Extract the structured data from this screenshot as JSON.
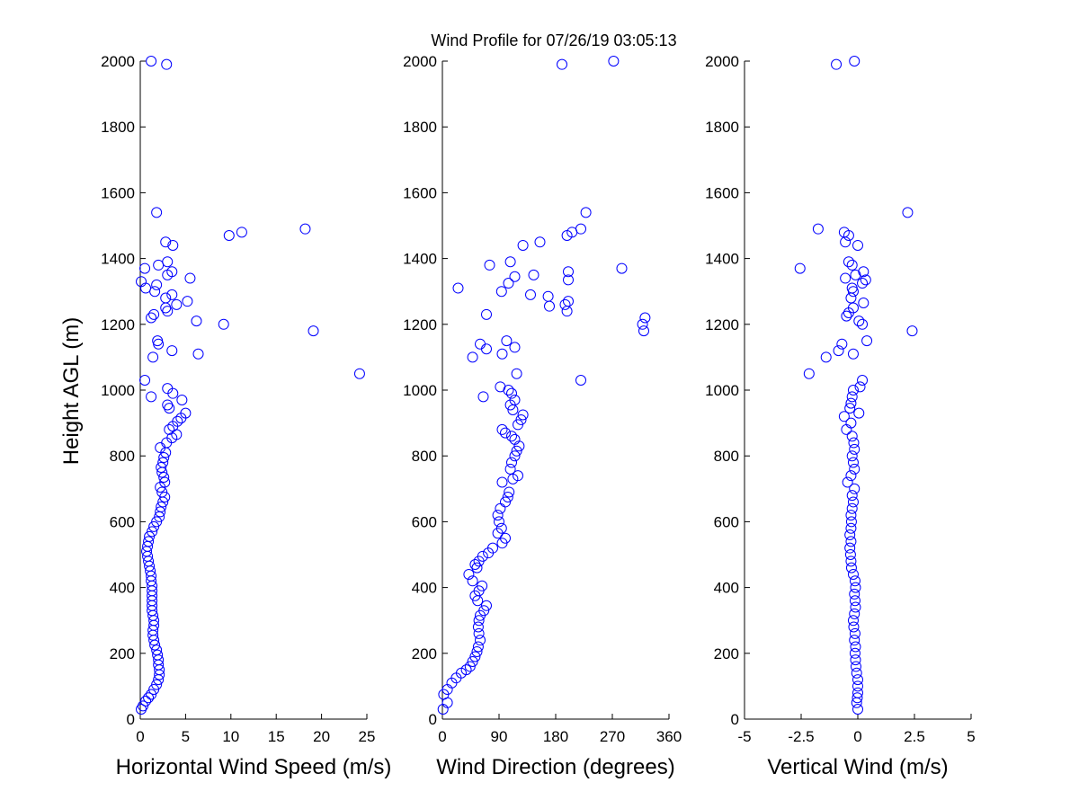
{
  "chart_data": {
    "title": "Wind Profile for  07/26/19 03:05:13",
    "ylabel": "Height AGL (m)",
    "panels": [
      {
        "type": "scatter",
        "xlabel": "Horizontal Wind Speed (m/s)",
        "xlim": [
          0,
          25
        ],
        "xticks": [
          "0",
          "5",
          "10",
          "15",
          "20",
          "25"
        ],
        "xtick_values": [
          0,
          5,
          10,
          15,
          20,
          25
        ],
        "ylim": [
          0,
          2000
        ],
        "yticks": [
          "0",
          "200",
          "400",
          "600",
          "800",
          "1000",
          "1200",
          "1400",
          "1600",
          "1800",
          "2000"
        ],
        "color": "#0000ff",
        "points": [
          [
            0.1,
            30
          ],
          [
            0.3,
            40
          ],
          [
            0.6,
            55
          ],
          [
            0.9,
            65
          ],
          [
            1.2,
            75
          ],
          [
            1.5,
            90
          ],
          [
            1.8,
            105
          ],
          [
            2.0,
            120
          ],
          [
            2.1,
            135
          ],
          [
            2.1,
            150
          ],
          [
            2.0,
            165
          ],
          [
            2.0,
            180
          ],
          [
            1.9,
            195
          ],
          [
            1.8,
            210
          ],
          [
            1.6,
            225
          ],
          [
            1.5,
            240
          ],
          [
            1.4,
            255
          ],
          [
            1.4,
            270
          ],
          [
            1.5,
            285
          ],
          [
            1.5,
            300
          ],
          [
            1.4,
            315
          ],
          [
            1.3,
            330
          ],
          [
            1.3,
            345
          ],
          [
            1.3,
            360
          ],
          [
            1.3,
            375
          ],
          [
            1.3,
            390
          ],
          [
            1.3,
            405
          ],
          [
            1.2,
            420
          ],
          [
            1.2,
            435
          ],
          [
            1.1,
            450
          ],
          [
            1.0,
            465
          ],
          [
            0.9,
            480
          ],
          [
            0.8,
            495
          ],
          [
            0.7,
            510
          ],
          [
            0.8,
            525
          ],
          [
            0.9,
            540
          ],
          [
            1.0,
            555
          ],
          [
            1.3,
            570
          ],
          [
            1.5,
            585
          ],
          [
            1.8,
            600
          ],
          [
            2.1,
            615
          ],
          [
            2.2,
            630
          ],
          [
            2.3,
            645
          ],
          [
            2.5,
            660
          ],
          [
            2.7,
            675
          ],
          [
            2.4,
            690
          ],
          [
            2.2,
            705
          ],
          [
            2.7,
            720
          ],
          [
            2.6,
            735
          ],
          [
            2.4,
            750
          ],
          [
            2.3,
            765
          ],
          [
            2.5,
            780
          ],
          [
            2.6,
            795
          ],
          [
            2.8,
            810
          ],
          [
            2.2,
            825
          ],
          [
            2.9,
            840
          ],
          [
            3.5,
            855
          ],
          [
            4.0,
            865
          ],
          [
            3.2,
            880
          ],
          [
            3.6,
            890
          ],
          [
            4.1,
            905
          ],
          [
            4.5,
            915
          ],
          [
            5.0,
            930
          ],
          [
            3.2,
            945
          ],
          [
            3.0,
            955
          ],
          [
            4.6,
            970
          ],
          [
            3.6,
            990
          ],
          [
            3.0,
            1005
          ],
          [
            1.2,
            980
          ],
          [
            0.5,
            1030
          ],
          [
            24.2,
            1050
          ],
          [
            1.4,
            1100
          ],
          [
            3.5,
            1120
          ],
          [
            2.0,
            1140
          ],
          [
            1.9,
            1150
          ],
          [
            6.4,
            1110
          ],
          [
            19.1,
            1180
          ],
          [
            9.2,
            1200
          ],
          [
            6.2,
            1210
          ],
          [
            1.2,
            1220
          ],
          [
            1.5,
            1230
          ],
          [
            3.0,
            1240
          ],
          [
            2.8,
            1250
          ],
          [
            4.0,
            1260
          ],
          [
            5.2,
            1270
          ],
          [
            2.8,
            1280
          ],
          [
            3.5,
            1290
          ],
          [
            1.6,
            1300
          ],
          [
            0.6,
            1310
          ],
          [
            1.8,
            1320
          ],
          [
            0.1,
            1330
          ],
          [
            5.5,
            1340
          ],
          [
            3.0,
            1350
          ],
          [
            3.5,
            1360
          ],
          [
            0.5,
            1370
          ],
          [
            2.0,
            1380
          ],
          [
            3.0,
            1390
          ],
          [
            3.6,
            1440
          ],
          [
            2.8,
            1450
          ],
          [
            9.8,
            1470
          ],
          [
            11.2,
            1480
          ],
          [
            18.2,
            1490
          ],
          [
            1.8,
            1540
          ],
          [
            2.9,
            1990
          ],
          [
            1.2,
            2000
          ]
        ]
      },
      {
        "type": "scatter",
        "xlabel": "Wind Direction (degrees)",
        "xlim": [
          0,
          360
        ],
        "xticks": [
          "0",
          "90",
          "180",
          "270",
          "360"
        ],
        "xtick_values": [
          0,
          90,
          180,
          270,
          360
        ],
        "ylim": [
          0,
          2000
        ],
        "yticks": [
          "0",
          "200",
          "400",
          "600",
          "800",
          "1000",
          "1200",
          "1400",
          "1600",
          "1800",
          "2000"
        ],
        "color": "#0000ff",
        "points": [
          [
            1,
            30
          ],
          [
            8,
            50
          ],
          [
            2,
            75
          ],
          [
            8,
            90
          ],
          [
            15,
            110
          ],
          [
            22,
            125
          ],
          [
            30,
            140
          ],
          [
            38,
            150
          ],
          [
            44,
            160
          ],
          [
            48,
            175
          ],
          [
            52,
            190
          ],
          [
            55,
            205
          ],
          [
            57,
            220
          ],
          [
            60,
            240
          ],
          [
            58,
            260
          ],
          [
            57,
            280
          ],
          [
            58,
            300
          ],
          [
            60,
            315
          ],
          [
            66,
            330
          ],
          [
            70,
            345
          ],
          [
            56,
            360
          ],
          [
            52,
            375
          ],
          [
            58,
            390
          ],
          [
            63,
            405
          ],
          [
            48,
            420
          ],
          [
            42,
            440
          ],
          [
            55,
            460
          ],
          [
            52,
            470
          ],
          [
            58,
            480
          ],
          [
            64,
            495
          ],
          [
            73,
            505
          ],
          [
            80,
            520
          ],
          [
            95,
            535
          ],
          [
            100,
            550
          ],
          [
            88,
            565
          ],
          [
            94,
            580
          ],
          [
            90,
            600
          ],
          [
            88,
            620
          ],
          [
            92,
            640
          ],
          [
            100,
            660
          ],
          [
            104,
            675
          ],
          [
            106,
            690
          ],
          [
            95,
            720
          ],
          [
            112,
            730
          ],
          [
            120,
            740
          ],
          [
            108,
            760
          ],
          [
            110,
            780
          ],
          [
            115,
            800
          ],
          [
            118,
            815
          ],
          [
            122,
            830
          ],
          [
            115,
            850
          ],
          [
            110,
            860
          ],
          [
            100,
            870
          ],
          [
            95,
            880
          ],
          [
            120,
            895
          ],
          [
            125,
            910
          ],
          [
            128,
            925
          ],
          [
            112,
            940
          ],
          [
            108,
            955
          ],
          [
            115,
            970
          ],
          [
            110,
            990
          ],
          [
            105,
            1000
          ],
          [
            92,
            1010
          ],
          [
            65,
            980
          ],
          [
            220,
            1030
          ],
          [
            118,
            1050
          ],
          [
            95,
            1110
          ],
          [
            48,
            1100
          ],
          [
            70,
            1125
          ],
          [
            60,
            1140
          ],
          [
            102,
            1150
          ],
          [
            115,
            1130
          ],
          [
            320,
            1180
          ],
          [
            318,
            1200
          ],
          [
            322,
            1220
          ],
          [
            70,
            1230
          ],
          [
            198,
            1240
          ],
          [
            170,
            1255
          ],
          [
            195,
            1260
          ],
          [
            200,
            1270
          ],
          [
            168,
            1285
          ],
          [
            140,
            1290
          ],
          [
            94,
            1300
          ],
          [
            25,
            1310
          ],
          [
            105,
            1325
          ],
          [
            200,
            1335
          ],
          [
            115,
            1345
          ],
          [
            145,
            1350
          ],
          [
            200,
            1360
          ],
          [
            285,
            1370
          ],
          [
            75,
            1380
          ],
          [
            108,
            1390
          ],
          [
            128,
            1440
          ],
          [
            155,
            1450
          ],
          [
            198,
            1470
          ],
          [
            206,
            1480
          ],
          [
            220,
            1490
          ],
          [
            228,
            1540
          ],
          [
            190,
            1990
          ],
          [
            272,
            2000
          ]
        ]
      },
      {
        "type": "scatter",
        "xlabel": "Vertical Wind (m/s)",
        "xlim": [
          -5,
          5
        ],
        "xticks": [
          "-5",
          "-2.5",
          "0",
          "2.5",
          "5"
        ],
        "xtick_values": [
          -5,
          -2.5,
          0,
          2.5,
          5
        ],
        "ylim": [
          0,
          2000
        ],
        "yticks": [
          "0",
          "200",
          "400",
          "600",
          "800",
          "1000",
          "1200",
          "1400",
          "1600",
          "1800",
          "2000"
        ],
        "color": "#0000ff",
        "points": [
          [
            0.0,
            30
          ],
          [
            -0.05,
            50
          ],
          [
            -0.02,
            65
          ],
          [
            0.0,
            80
          ],
          [
            0.0,
            100
          ],
          [
            0.0,
            120
          ],
          [
            -0.05,
            140
          ],
          [
            -0.08,
            160
          ],
          [
            -0.1,
            180
          ],
          [
            -0.12,
            200
          ],
          [
            -0.1,
            220
          ],
          [
            -0.15,
            240
          ],
          [
            -0.12,
            260
          ],
          [
            -0.18,
            280
          ],
          [
            -0.2,
            300
          ],
          [
            -0.15,
            320
          ],
          [
            -0.1,
            340
          ],
          [
            -0.12,
            360
          ],
          [
            -0.15,
            380
          ],
          [
            -0.1,
            400
          ],
          [
            -0.12,
            420
          ],
          [
            -0.2,
            440
          ],
          [
            -0.28,
            460
          ],
          [
            -0.3,
            480
          ],
          [
            -0.32,
            500
          ],
          [
            -0.35,
            520
          ],
          [
            -0.3,
            540
          ],
          [
            -0.35,
            560
          ],
          [
            -0.3,
            580
          ],
          [
            -0.28,
            600
          ],
          [
            -0.3,
            620
          ],
          [
            -0.25,
            640
          ],
          [
            -0.2,
            660
          ],
          [
            -0.25,
            680
          ],
          [
            -0.15,
            700
          ],
          [
            -0.45,
            720
          ],
          [
            -0.3,
            740
          ],
          [
            -0.15,
            760
          ],
          [
            -0.2,
            780
          ],
          [
            -0.25,
            800
          ],
          [
            -0.15,
            820
          ],
          [
            -0.18,
            840
          ],
          [
            -0.25,
            860
          ],
          [
            -0.5,
            880
          ],
          [
            -0.3,
            900
          ],
          [
            -0.6,
            920
          ],
          [
            0.05,
            930
          ],
          [
            -0.35,
            945
          ],
          [
            -0.3,
            960
          ],
          [
            -0.25,
            980
          ],
          [
            -0.2,
            1000
          ],
          [
            0.1,
            1010
          ],
          [
            0.2,
            1030
          ],
          [
            -2.15,
            1050
          ],
          [
            -1.4,
            1100
          ],
          [
            -0.2,
            1110
          ],
          [
            -0.85,
            1120
          ],
          [
            -0.7,
            1140
          ],
          [
            0.4,
            1150
          ],
          [
            2.4,
            1180
          ],
          [
            0.2,
            1200
          ],
          [
            0.05,
            1210
          ],
          [
            -0.5,
            1225
          ],
          [
            -0.4,
            1235
          ],
          [
            -0.2,
            1250
          ],
          [
            0.25,
            1265
          ],
          [
            -0.3,
            1280
          ],
          [
            -0.2,
            1300
          ],
          [
            -0.25,
            1310
          ],
          [
            0.2,
            1325
          ],
          [
            0.35,
            1335
          ],
          [
            -0.55,
            1340
          ],
          [
            -0.1,
            1350
          ],
          [
            0.25,
            1360
          ],
          [
            -2.55,
            1370
          ],
          [
            -0.25,
            1380
          ],
          [
            -0.4,
            1390
          ],
          [
            0.0,
            1440
          ],
          [
            -0.55,
            1450
          ],
          [
            -0.4,
            1470
          ],
          [
            -0.6,
            1480
          ],
          [
            -1.75,
            1490
          ],
          [
            2.2,
            1540
          ],
          [
            -0.95,
            1990
          ],
          [
            -0.15,
            2000
          ]
        ]
      }
    ]
  }
}
